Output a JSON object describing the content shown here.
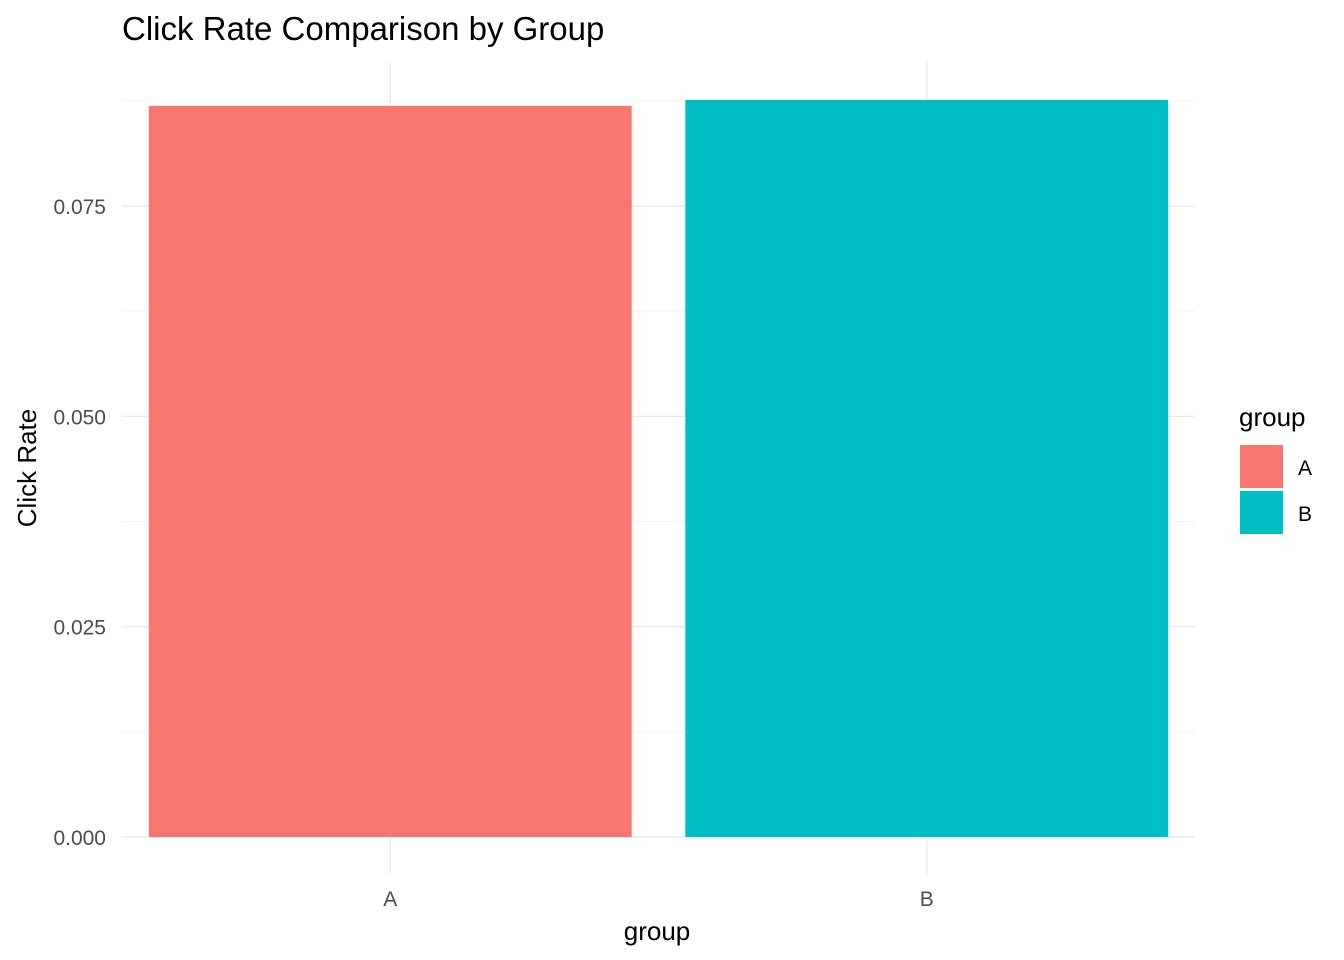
{
  "chart_data": {
    "type": "bar",
    "title": "Click Rate Comparison by Group",
    "xlabel": "group",
    "ylabel": "Click Rate",
    "categories": [
      "A",
      "B"
    ],
    "values": [
      0.0869,
      0.0876
    ],
    "colors": [
      "#F8766D",
      "#00BFC4"
    ],
    "ylim": [
      0,
      0.0876
    ],
    "yticks": [
      0.0,
      0.025,
      0.05,
      0.075
    ],
    "ytick_labels": [
      "0.000",
      "0.025",
      "0.050",
      "0.075"
    ],
    "grid": true,
    "legend": {
      "title": "group",
      "position": "right",
      "entries": [
        {
          "label": "A",
          "color": "#F8766D"
        },
        {
          "label": "B",
          "color": "#00BFC4"
        }
      ]
    }
  }
}
